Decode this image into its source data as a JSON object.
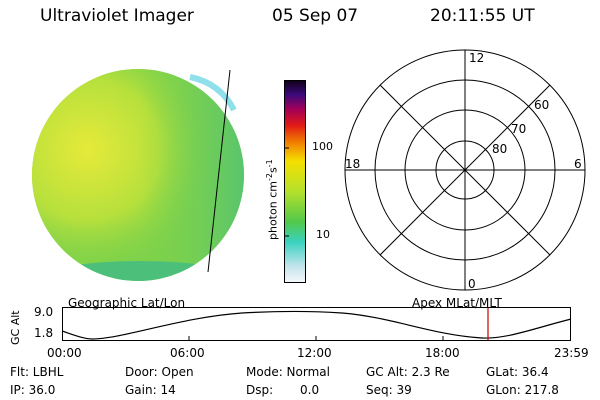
{
  "header": {
    "instrument": "Ultraviolet Imager",
    "date": "05 Sep 07",
    "time": "20:11:55 UT"
  },
  "colorbar": {
    "unit_text": "photon cm",
    "unit_exp1": "-2",
    "unit_mid": "s",
    "unit_exp2": "-1",
    "ticks": [
      "100",
      "10"
    ]
  },
  "polar": {
    "mlt_labels": {
      "top": "12",
      "left": "18",
      "right": "6",
      "bottom": "0"
    },
    "lat_labels": [
      "60",
      "70",
      "80"
    ]
  },
  "trajectory": {
    "left_title": "Geographic Lat/Lon",
    "right_title": "Apex MLat/MLT",
    "axis_label": "GC Alt",
    "y_ticks": [
      "9.0",
      "1.8"
    ],
    "time_ticks": [
      "00:00",
      "06:00",
      "12:00",
      "18:00",
      "23:59"
    ]
  },
  "status": {
    "filter": "Flt: LBHL",
    "ip": "IP: 36.0",
    "door": "Door: Open",
    "gain": "Gain: 14",
    "mode": "Mode: Normal",
    "dsp_label": "Dsp:",
    "dsp_value": "0.0",
    "gc_alt": "GC Alt: 2.3 Re",
    "seq": "Seq: 39",
    "glat": "GLat:  36.4",
    "glon": "GLon: 217.8"
  },
  "colors": {
    "disk_main": "#7ed24a",
    "disk_bright": "#e6ea3a",
    "disk_dim": "#4cc07a",
    "limb": "#8fe0ea",
    "trajectory_marker": "#cc0000"
  }
}
